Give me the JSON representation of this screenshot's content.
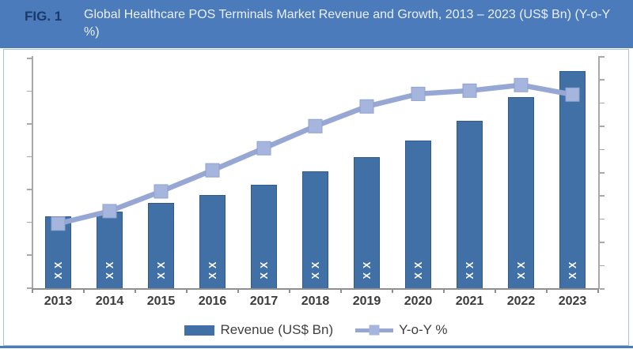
{
  "figure": {
    "label": "FIG. 1",
    "title": "Global Healthcare POS Terminals Market Revenue and Growth, 2013 – 2023 (US$ Bn) (Y-o-Y %)"
  },
  "colors": {
    "header_bg": "#4b7bba",
    "fig_label_text": "#1b3a6b",
    "title_text": "#eaf0f9",
    "card_border": "#a9c2dc",
    "bar_fill": "#4070a6",
    "bar_border": "#2f5a8a",
    "line": "#97a7d4",
    "marker_fill": "#a6b5de",
    "marker_border": "#8fa2cd",
    "axis_line": "#a8a8a8",
    "x_axis_line": "#8f8f8f",
    "x_label_text": "#3b3b3b",
    "legend_text": "#404040",
    "bar_label_text": "#ffffff",
    "footer_line": "#4b7bba"
  },
  "chart_data": {
    "type": "combo-bar-line",
    "title": "Global Healthcare POS Terminals Market Revenue and Growth, 2013 – 2023 (US$ Bn) (Y-o-Y %)",
    "categories": [
      "2013",
      "2014",
      "2015",
      "2016",
      "2017",
      "2018",
      "2019",
      "2020",
      "2021",
      "2022",
      "2023"
    ],
    "series": [
      {
        "name": "Revenue (US$ Bn)",
        "type": "bar",
        "data_labels": [
          "XX",
          "XX",
          "XX",
          "XX",
          "XX",
          "XX",
          "XX",
          "XX",
          "XX",
          "XX",
          "XX"
        ],
        "values_pct_of_plot": [
          30.8,
          32.9,
          36.6,
          40.0,
          44.4,
          50.2,
          56.6,
          63.7,
          72.2,
          82.4,
          93.6
        ]
      },
      {
        "name": "Y-o-Y %",
        "type": "line",
        "values_pct_of_plot": [
          27.8,
          33.2,
          41.7,
          50.8,
          60.3,
          69.8,
          78.3,
          83.7,
          85.1,
          87.5,
          83.4
        ]
      }
    ],
    "notes": "Numeric values masked as XX in source figure; values_pct_of_plot are pixel-estimated relative heights",
    "value_axis_labels_visible": false,
    "left_axis_tick_count": 8,
    "right_axis_tick_count": 11,
    "gridlines": false,
    "legend_position": "bottom"
  },
  "legend": {
    "revenue_label": "Revenue (US$ Bn)",
    "yoy_label": "Y-o-Y %"
  }
}
